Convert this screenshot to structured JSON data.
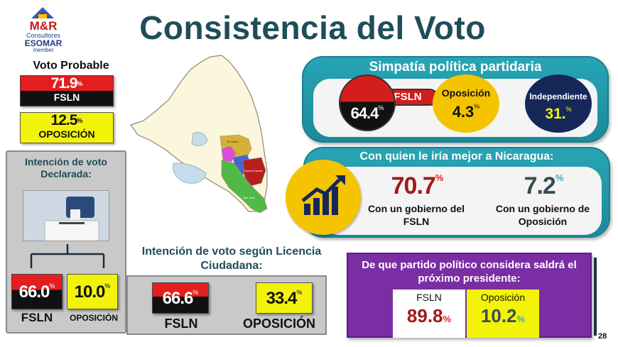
{
  "logo": {
    "brand": "M&R",
    "subtitle": "Consultores",
    "esomar": "ESOMAR",
    "member": "member"
  },
  "title": "Consistencia del Voto",
  "voto_probable": {
    "title": "Voto Probable",
    "fsln_value": "71.9",
    "fsln_label": "FSLN",
    "opo_value": "12.5",
    "opo_label": "OPOSICIÓN",
    "pct": "%"
  },
  "intencion_declarada": {
    "title": "Intención de voto Declarada:",
    "fsln_value": "66.0",
    "fsln_label": "FSLN",
    "opo_value": "10.0",
    "opo_label": "OPOSICIÓN",
    "pct": "%"
  },
  "map": {
    "regions": [
      "El Limón",
      "Nueva Guinea",
      "San Juan"
    ]
  },
  "simpatia": {
    "title": "Simpatía política partidaria",
    "fsln_label": "FSLN",
    "fsln_value": "64.4",
    "opo_label": "Oposición",
    "opo_value": "4.3",
    "ind_label": "Independiente",
    "ind_value": "31.",
    "pct": "%"
  },
  "con_quien": {
    "title": "Con quien le iría mejor a Nicaragua:",
    "fsln_value": "70.7",
    "fsln_label": "Con un gobierno del FSLN",
    "opo_value": "7.2",
    "opo_label": "Con un gobierno de Oposición",
    "pct": "%"
  },
  "licencia": {
    "title": "Intención de voto según Licencia Ciudadana:",
    "fsln_value": "66.6",
    "fsln_label": "FSLN",
    "opo_value": "33.4",
    "opo_label": "OPOSICIÓN",
    "pct": "%"
  },
  "presidente": {
    "title": "De que partido político considera saldrá el próximo presidente:",
    "fsln_label": "FSLN",
    "fsln_value": "89.8",
    "opo_label": "Oposición",
    "opo_value": "10.2",
    "pct": "%"
  },
  "page_number": "28",
  "colors": {
    "teal": "#1b8a9a",
    "red": "#e41e1e",
    "yellow": "#f3f30a",
    "purple": "#7b2da3",
    "navy": "#16285a",
    "title": "#1f4d5a"
  }
}
